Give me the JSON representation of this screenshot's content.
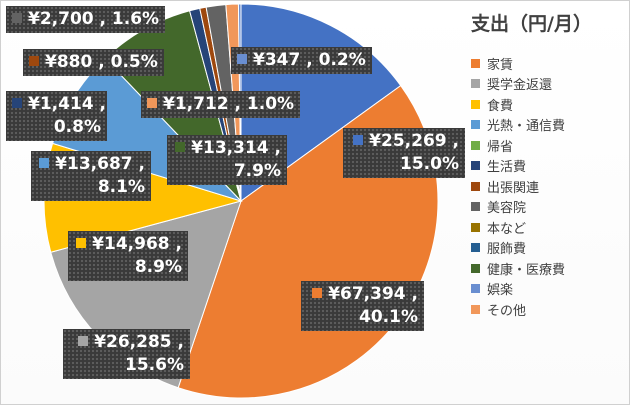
{
  "chart_data": {
    "type": "pie",
    "title": "支出（円/月）",
    "slices": [
      {
        "name": "家賃",
        "value": 67394,
        "value_label": "¥67,394",
        "percent_label": "40.1%",
        "color": "#ED7D31"
      },
      {
        "name": "奨学金返還",
        "value": 26285,
        "value_label": "¥26,285",
        "percent_label": "15.6%",
        "color": "#A5A5A5"
      },
      {
        "name": "食費",
        "value": 14968,
        "value_label": "¥14,968",
        "percent_label": "8.9%",
        "color": "#FFC000"
      },
      {
        "name": "光熱・通信費",
        "value": 13687,
        "value_label": "¥13,687",
        "percent_label": "8.1%",
        "color": "#5B9BD5"
      },
      {
        "name": "帰省",
        "value": 0,
        "value_label": "",
        "percent_label": "",
        "color": "#70AD47"
      },
      {
        "name": "生活費",
        "value": 1414,
        "value_label": "¥1,414",
        "percent_label": "0.8%",
        "color": "#264478"
      },
      {
        "name": "出張関連",
        "value": 880,
        "value_label": "¥880",
        "percent_label": "0.5%",
        "color": "#9E480E"
      },
      {
        "name": "美容院",
        "value": 2700,
        "value_label": "¥2,700",
        "percent_label": "1.6%",
        "color": "#636363"
      },
      {
        "name": "本など",
        "value": 0,
        "value_label": "",
        "percent_label": "",
        "color": "#997300"
      },
      {
        "name": "服飾費",
        "value": 0,
        "value_label": "",
        "percent_label": "",
        "color": "#255E91"
      },
      {
        "name": "健康・医療費",
        "value": 13314,
        "value_label": "¥13,314",
        "percent_label": "7.9%",
        "color": "#43682B"
      },
      {
        "name": "娯楽",
        "value": 347,
        "value_label": "¥347",
        "percent_label": "0.2%",
        "color": "#698ED0"
      },
      {
        "name": "その他",
        "value": 1712,
        "value_label": "¥1,712",
        "percent_label": "1.0%",
        "color": "#F1975A"
      }
    ],
    "extra_slices": [
      {
        "value": 25269,
        "value_label": "¥25,269",
        "percent_label": "15.0%",
        "color": "#4472C4"
      }
    ],
    "legend_position": "right"
  }
}
